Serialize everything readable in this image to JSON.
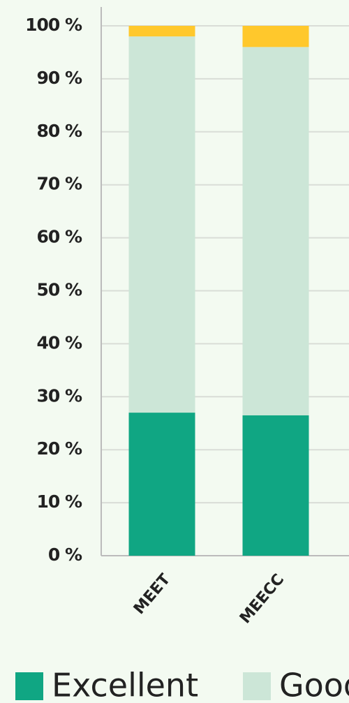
{
  "chart_data": {
    "type": "stacked_bar",
    "categories": [
      "MEET",
      "MEECC"
    ],
    "series": [
      {
        "name": "Excellent",
        "color": "#10a683",
        "values": [
          27,
          26.5
        ]
      },
      {
        "name": "Good",
        "color": "#cce6d7",
        "values": [
          71,
          69.5
        ]
      },
      {
        "color": "#ffc82c",
        "values": [
          2,
          4
        ]
      }
    ],
    "ylim": [
      0,
      100
    ],
    "yticks": [
      {
        "value": 0,
        "label": "0 %"
      },
      {
        "value": 10,
        "label": "10 %"
      },
      {
        "value": 20,
        "label": "20 %"
      },
      {
        "value": 30,
        "label": "30 %"
      },
      {
        "value": 40,
        "label": "40 %"
      },
      {
        "value": 50,
        "label": "50 %"
      },
      {
        "value": 60,
        "label": "60 %"
      },
      {
        "value": 70,
        "label": "70 %"
      },
      {
        "value": 80,
        "label": "80 %"
      },
      {
        "value": 90,
        "label": "90 %"
      },
      {
        "value": 100,
        "label": "100 %"
      }
    ],
    "grid": true,
    "legend": "bottom"
  }
}
